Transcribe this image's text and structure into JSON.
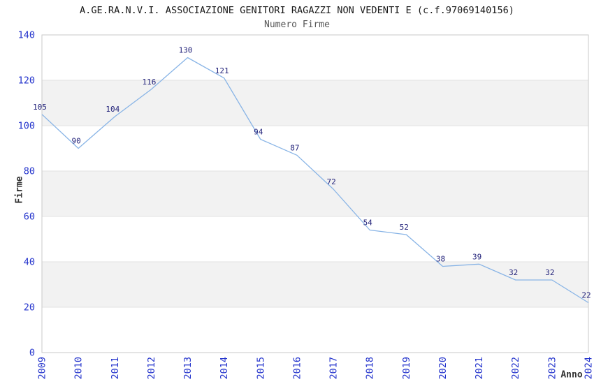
{
  "chart_data": {
    "type": "line",
    "title": "A.GE.RA.N.V.I. ASSOCIAZIONE GENITORI RAGAZZI NON VEDENTI E (c.f.97069140156)",
    "subtitle": "Numero Firme",
    "xlabel": "Anno",
    "ylabel": "Firme",
    "categories": [
      "2009",
      "2010",
      "2011",
      "2012",
      "2013",
      "2014",
      "2015",
      "2016",
      "2017",
      "2018",
      "2019",
      "2020",
      "2021",
      "2022",
      "2023",
      "2024"
    ],
    "values": [
      105,
      90,
      104,
      116,
      130,
      121,
      94,
      87,
      72,
      54,
      52,
      38,
      39,
      32,
      32,
      22
    ],
    "ylim": [
      0,
      140
    ],
    "ytick_step": 20,
    "yticks": [
      0,
      20,
      40,
      60,
      80,
      100,
      120,
      140
    ],
    "grid": "alternating-horizontal-bands",
    "legend_position": "none",
    "point_labels_visible": true,
    "x_tick_rotation_deg": 90,
    "colors": {
      "line": "#88b4e6",
      "point_label": "#22227a",
      "tick_label": "#2333cc",
      "title": "#1a1a1a",
      "subtitle": "#555555",
      "axis_label": "#333333",
      "band": "#f2f2f2",
      "gridline": "#e2e2e2",
      "plot_border": "#c9c9c9",
      "background": "#ffffff"
    }
  }
}
